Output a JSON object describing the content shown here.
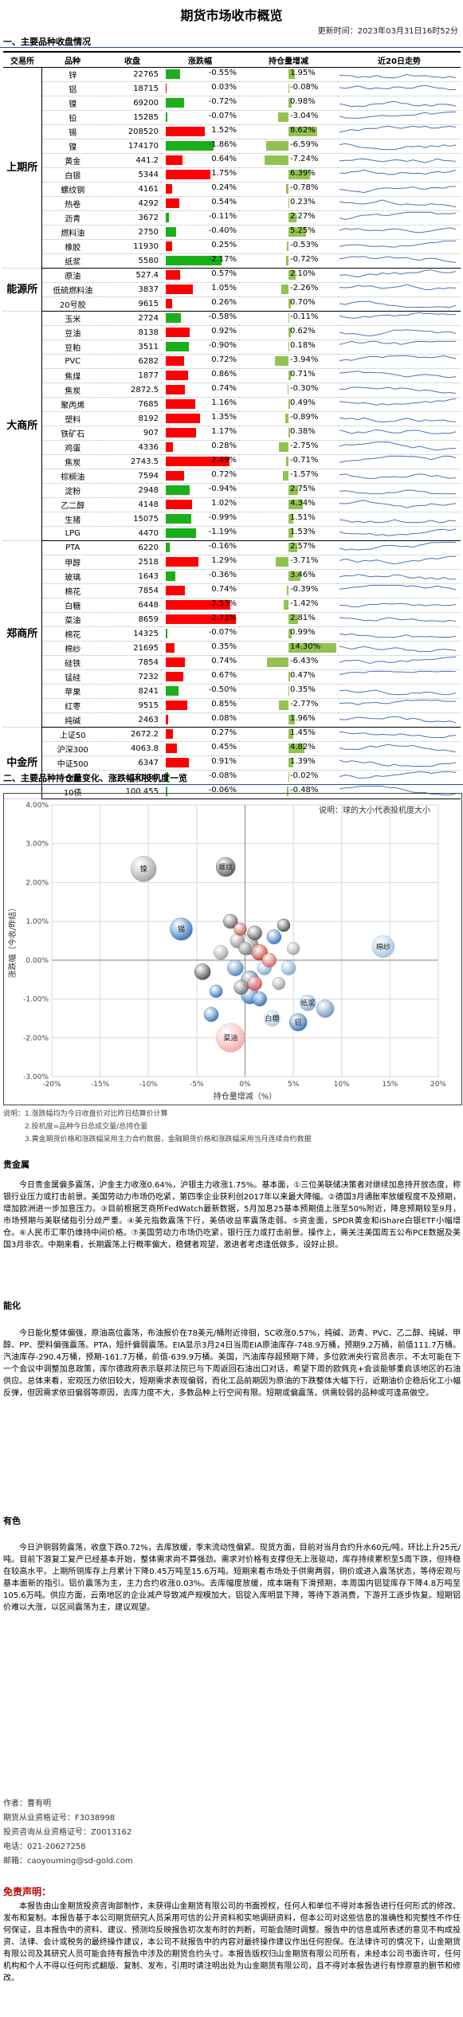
{
  "title": "期货市场收市概览",
  "updated": "更新时间：2023年03月31日16时52分",
  "section1": "一、主要品种收盘情况",
  "headers": [
    "交易所",
    "品种",
    "收盘",
    "涨跌幅",
    "持仓量增减",
    "近20日走势"
  ],
  "colors": {
    "up": "#ff0000",
    "down": "#19b019",
    "hold": "#92c350",
    "trend": "#4a73b5"
  },
  "groups": [
    {
      "exchange": "上期所",
      "rows": [
        {
          "name": "锌",
          "price": "22765",
          "chg": "-0.55%",
          "chgv": -0.55,
          "hold": "1.95%",
          "holdv": 1.95
        },
        {
          "name": "铝",
          "price": "18715",
          "chg": "0.03%",
          "chgv": 0.03,
          "hold": "-0.08%",
          "holdv": -0.08
        },
        {
          "name": "镍",
          "price": "69200",
          "chg": "-0.72%",
          "chgv": -0.72,
          "hold": "0.98%",
          "holdv": 0.98
        },
        {
          "name": "铅",
          "price": "15285",
          "chg": "-0.07%",
          "chgv": -0.07,
          "hold": "-3.04%",
          "holdv": -3.04
        },
        {
          "name": "锡",
          "price": "208520",
          "chg": "1.52%",
          "chgv": 1.52,
          "hold": "8.62%",
          "holdv": 8.62
        },
        {
          "name": "镍",
          "price": "174170",
          "chg": "-1.86%",
          "chgv": -1.86,
          "hold": "-6.59%",
          "holdv": -6.59
        },
        {
          "name": "黄金",
          "price": "441.2",
          "chg": "0.64%",
          "chgv": 0.64,
          "hold": "-7.24%",
          "holdv": -7.24
        },
        {
          "name": "白银",
          "price": "5344",
          "chg": "1.75%",
          "chgv": 1.75,
          "hold": "6.39%",
          "holdv": 6.39
        },
        {
          "name": "螺纹钢",
          "price": "4161",
          "chg": "0.24%",
          "chgv": 0.24,
          "hold": "-0.78%",
          "holdv": -0.78
        },
        {
          "name": "热卷",
          "price": "4292",
          "chg": "0.54%",
          "chgv": 0.54,
          "hold": "0.23%",
          "holdv": 0.23
        },
        {
          "name": "沥青",
          "price": "3672",
          "chg": "-0.11%",
          "chgv": -0.11,
          "hold": "2.27%",
          "holdv": 2.27
        },
        {
          "name": "燃料油",
          "price": "2750",
          "chg": "-0.40%",
          "chgv": -0.4,
          "hold": "5.25%",
          "holdv": 5.25
        },
        {
          "name": "橡胶",
          "price": "11930",
          "chg": "0.25%",
          "chgv": 0.25,
          "hold": "-0.53%",
          "holdv": -0.53
        },
        {
          "name": "纸浆",
          "price": "5580",
          "chg": "-2.17%",
          "chgv": -2.17,
          "hold": "-0.72%",
          "holdv": -0.72
        }
      ]
    },
    {
      "exchange": "能源所",
      "rows": [
        {
          "name": "原油",
          "price": "527.4",
          "chg": "0.57%",
          "chgv": 0.57,
          "hold": "2.10%",
          "holdv": 2.1
        },
        {
          "name": "低硫燃料油",
          "price": "3837",
          "chg": "1.05%",
          "chgv": 1.05,
          "hold": "-2.26%",
          "holdv": -2.26
        },
        {
          "name": "20号胶",
          "price": "9615",
          "chg": "0.26%",
          "chgv": 0.26,
          "hold": "0.70%",
          "holdv": 0.7
        }
      ]
    },
    {
      "exchange": "大商所",
      "rows": [
        {
          "name": "玉米",
          "price": "2724",
          "chg": "-0.58%",
          "chgv": -0.58,
          "hold": "-0.11%",
          "holdv": -0.11
        },
        {
          "name": "豆油",
          "price": "8138",
          "chg": "0.92%",
          "chgv": 0.92,
          "hold": "0.62%",
          "holdv": 0.62
        },
        {
          "name": "豆粕",
          "price": "3511",
          "chg": "-0.90%",
          "chgv": -0.9,
          "hold": "0.18%",
          "holdv": 0.18
        },
        {
          "name": "PVC",
          "price": "6282",
          "chg": "0.72%",
          "chgv": 0.72,
          "hold": "-3.94%",
          "holdv": -3.94
        },
        {
          "name": "焦煤",
          "price": "1877",
          "chg": "0.86%",
          "chgv": 0.86,
          "hold": "0.71%",
          "holdv": 0.71
        },
        {
          "name": "焦炭",
          "price": "2872.5",
          "chg": "0.74%",
          "chgv": 0.74,
          "hold": "-0.30%",
          "holdv": -0.3
        },
        {
          "name": "聚丙烯",
          "price": "7685",
          "chg": "1.16%",
          "chgv": 1.16,
          "hold": "0.49%",
          "holdv": 0.49
        },
        {
          "name": "塑料",
          "price": "8192",
          "chg": "1.35%",
          "chgv": 1.35,
          "hold": "-0.89%",
          "holdv": -0.89
        },
        {
          "name": "铁矿石",
          "price": "907",
          "chg": "1.17%",
          "chgv": 1.17,
          "hold": "0.38%",
          "holdv": 0.38
        },
        {
          "name": "鸡蛋",
          "price": "4336",
          "chg": "0.28%",
          "chgv": 0.28,
          "hold": "-2.75%",
          "holdv": -2.75
        },
        {
          "name": "焦炭",
          "price": "2743.5",
          "chg": "2.49%",
          "chgv": 2.49,
          "hold": "-0.71%",
          "holdv": -0.71
        },
        {
          "name": "棕榈油",
          "price": "7594",
          "chg": "0.72%",
          "chgv": 0.72,
          "hold": "-1.57%",
          "holdv": -1.57
        },
        {
          "name": "淀粉",
          "price": "2948",
          "chg": "-0.94%",
          "chgv": -0.94,
          "hold": "2.75%",
          "holdv": 2.75
        },
        {
          "name": "乙二醇",
          "price": "4148",
          "chg": "1.02%",
          "chgv": 1.02,
          "hold": "4.34%",
          "holdv": 4.34
        },
        {
          "name": "生猪",
          "price": "15075",
          "chg": "-0.99%",
          "chgv": -0.99,
          "hold": "1.51%",
          "holdv": 1.51
        },
        {
          "name": "LPG",
          "price": "4470",
          "chg": "-1.19%",
          "chgv": -1.19,
          "hold": "1.53%",
          "holdv": 1.53
        }
      ]
    },
    {
      "exchange": "郑商所",
      "rows": [
        {
          "name": "PTA",
          "price": "6220",
          "chg": "-0.16%",
          "chgv": -0.16,
          "hold": "2.57%",
          "holdv": 2.57
        },
        {
          "name": "甲醇",
          "price": "2518",
          "chg": "1.29%",
          "chgv": 1.29,
          "hold": "-3.71%",
          "holdv": -3.71
        },
        {
          "name": "玻璃",
          "price": "1643",
          "chg": "-0.36%",
          "chgv": -0.36,
          "hold": "3.46%",
          "holdv": 3.46
        },
        {
          "name": "棉花",
          "price": "7854",
          "chg": "0.74%",
          "chgv": 0.74,
          "hold": "-0.39%",
          "holdv": -0.39
        },
        {
          "name": "白糖",
          "price": "6448",
          "chg": "2.53%",
          "chgv": 2.53,
          "hold": "-1.42%",
          "holdv": -1.42
        },
        {
          "name": "菜油",
          "price": "8659",
          "chg": "2.73%",
          "chgv": 2.73,
          "hold": "2.81%",
          "holdv": 2.81
        },
        {
          "name": "棉花",
          "price": "14325",
          "chg": "-0.07%",
          "chgv": -0.07,
          "hold": "0.99%",
          "holdv": 0.99
        },
        {
          "name": "棉纱",
          "price": "21695",
          "chg": "0.35%",
          "chgv": 0.35,
          "hold": "14.30%",
          "holdv": 14.3
        },
        {
          "name": "硅铁",
          "price": "7854",
          "chg": "0.74%",
          "chgv": 0.74,
          "hold": "-6.43%",
          "holdv": -6.43
        },
        {
          "name": "锰硅",
          "price": "7232",
          "chg": "0.67%",
          "chgv": 0.67,
          "hold": "0.47%",
          "holdv": 0.47
        },
        {
          "name": "苹果",
          "price": "8241",
          "chg": "-0.50%",
          "chgv": -0.5,
          "hold": "0.35%",
          "holdv": 0.35
        },
        {
          "name": "红枣",
          "price": "9515",
          "chg": "0.85%",
          "chgv": 0.85,
          "hold": "-2.77%",
          "holdv": -2.77
        },
        {
          "name": "纯碱",
          "price": "2463",
          "chg": "0.08%",
          "chgv": 0.08,
          "hold": "1.96%",
          "holdv": 1.96
        }
      ]
    },
    {
      "exchange": "中金所",
      "rows": [
        {
          "name": "上证50",
          "price": "2672.2",
          "chg": "0.27%",
          "chgv": 0.27,
          "hold": "1.45%",
          "holdv": 1.45
        },
        {
          "name": "沪深300",
          "price": "4063.8",
          "chg": "0.45%",
          "chgv": 0.45,
          "hold": "4.82%",
          "holdv": 4.82
        },
        {
          "name": "中证500",
          "price": "6347",
          "chg": "0.91%",
          "chgv": 0.91,
          "hold": "1.39%",
          "holdv": 1.39
        },
        {
          "name": "5债",
          "price": "101.06",
          "chg": "-0.08%",
          "chgv": -0.08,
          "hold": "-0.02%",
          "holdv": -0.02
        },
        {
          "name": "10债",
          "price": "100.455",
          "chg": "-0.06%",
          "chgv": -0.06,
          "hold": "-0.48%",
          "holdv": -0.48
        }
      ]
    }
  ],
  "section2": "二、主要品种持仓量变化、涨跌幅和投机度一览",
  "chart_data": {
    "type": "scatter",
    "note": "说明：球的大小代表投机度大小",
    "xlabel": "持仓量增减（%）",
    "ylabel": "涨跌幅（今收/昨结）",
    "xlim": [
      -20,
      20
    ],
    "ylim": [
      -3,
      4
    ],
    "xticks": [
      "-20%",
      "-15%",
      "-10%",
      "-5%",
      "0%",
      "5%",
      "10%",
      "15%",
      "20%"
    ],
    "yticks": [
      "4.00%",
      "3.00%",
      "2.00%",
      "1.00%",
      "0.00%",
      "-1.00%",
      "-2.00%",
      "-3.00%"
    ],
    "points": [
      {
        "label": "镍",
        "x": -10.5,
        "y": 2.35,
        "r": 16,
        "color": "#9e9e9e"
      },
      {
        "label": "锡",
        "x": -6.6,
        "y": 0.8,
        "r": 14,
        "color": "#2e6fb7"
      },
      {
        "label": "螺纹",
        "x": -2.0,
        "y": 2.4,
        "r": 12,
        "color": "#555555"
      },
      {
        "label": "热卷",
        "x": 0.3,
        "y": 0.4,
        "r": 13,
        "color": "#7e7e7e"
      },
      {
        "label": "豆粕",
        "x": 0.5,
        "y": -0.9,
        "r": 11,
        "color": "#2e6fb7"
      },
      {
        "label": "菜油",
        "x": -1.5,
        "y": -2.0,
        "r": 18,
        "color": "#f4a7a7"
      },
      {
        "label": "白糖",
        "x": 2.8,
        "y": -1.5,
        "r": 10,
        "color": "#a8c8e8"
      },
      {
        "label": "铝",
        "x": 5.5,
        "y": -1.6,
        "r": 11,
        "color": "#2e6fb7"
      },
      {
        "label": "棉纱",
        "x": 14.3,
        "y": 0.35,
        "r": 14,
        "color": "#9fbfdf"
      },
      {
        "label": "纸浆",
        "x": 6.5,
        "y": -1.1,
        "r": 10,
        "color": "#7fa5cf"
      },
      {
        "label": "原油",
        "x": -4.4,
        "y": -0.3,
        "r": 10,
        "color": "#444444"
      },
      {
        "label": "黄金",
        "x": -3.5,
        "y": -1.4,
        "r": 9,
        "color": "#2e6fb7"
      },
      {
        "label": "白银",
        "x": 1.5,
        "y": 0.2,
        "r": 10,
        "color": "#c0392b"
      },
      {
        "label": "PVC",
        "x": -0.8,
        "y": 0.5,
        "r": 9,
        "color": "#888888"
      },
      {
        "label": "焦煤",
        "x": 0.5,
        "y": -0.5,
        "r": 11,
        "color": "#3f5f80"
      },
      {
        "label": "塑料",
        "x": -1.0,
        "y": -0.2,
        "r": 10,
        "color": "#4a7ebb"
      },
      {
        "label": "甲醇",
        "x": -0.4,
        "y": -0.7,
        "r": 9,
        "color": "#6a6a6a"
      },
      {
        "label": "乙二醇",
        "x": 1.0,
        "y": -0.6,
        "r": 9,
        "color": "#d64545"
      },
      {
        "label": "沥青",
        "x": 3.0,
        "y": 0.6,
        "r": 9,
        "color": "#2e6fb7"
      },
      {
        "label": "燃料油",
        "x": 5.0,
        "y": 0.3,
        "r": 8,
        "color": "#a0a0a0"
      },
      {
        "label": "玻璃",
        "x": 2.0,
        "y": -0.2,
        "r": 9,
        "color": "#7fa5cf"
      },
      {
        "label": "铁矿",
        "x": 1.0,
        "y": 0.7,
        "r": 9,
        "color": "#5a5a5a"
      },
      {
        "label": "棕榈",
        "x": -2.5,
        "y": 0.2,
        "r": 9,
        "color": "#9e9e9e"
      },
      {
        "label": "PTA",
        "x": 2.5,
        "y": 0.0,
        "r": 9,
        "color": "#d06060"
      },
      {
        "label": "生猪",
        "x": 1.5,
        "y": -1.0,
        "r": 9,
        "color": "#2e6fb7"
      },
      {
        "label": "鸡蛋",
        "x": -1.5,
        "y": 1.0,
        "r": 9,
        "color": "#5a5a5a"
      },
      {
        "label": "淀粉",
        "x": 3.5,
        "y": -0.6,
        "r": 8,
        "color": "#999999"
      },
      {
        "label": "LPG",
        "x": -0.5,
        "y": 0.8,
        "r": 8,
        "color": "#c0504d"
      },
      {
        "label": "锰硅",
        "x": 8.3,
        "y": -1.25,
        "r": 11,
        "color": "#6a8fbd"
      },
      {
        "label": "硅铁",
        "x": 4.0,
        "y": 0.9,
        "r": 8,
        "color": "#444444"
      },
      {
        "label": "苹果",
        "x": -3.0,
        "y": -0.8,
        "r": 8,
        "color": "#2e6fb7"
      },
      {
        "label": "红枣",
        "x": 0.0,
        "y": 0.3,
        "r": 8,
        "color": "#888888"
      },
      {
        "label": "纯碱",
        "x": 4.5,
        "y": -0.2,
        "r": 9,
        "color": "#7fa5cf"
      }
    ],
    "visible_labels": [
      "镍",
      "锡",
      "螺纹",
      "菜油",
      "铝",
      "棉纱",
      "白糖",
      "纸浆"
    ]
  },
  "notes": [
    "说明：1.涨跌幅均为今日收盘价对比昨日结算价计算",
    "　　　2.投机度=品种今日总成交量/总持仓量",
    "　　　3.黄金期货价格和涨跌幅采用主力合约数据，金融期货价格和涨跌幅采用当月连续合约数据"
  ],
  "text": {
    "h_metal": "贵金属",
    "metal": "今日贵金属偏多震荡，沪金主力收涨0.64%，沪银主力收涨1.75%。基本面，①三位美联储决策者对继续加息持开放态度，称银行业压力或打击前景。美国劳动力市场仍吃紧，第四季企业获利创2017年以来最大降幅。②德国3月通胀率放缓程度不及预期，增加欧洲进一步加息压力。③目前根据芝商所FedWatch最新数据，5月加息25基本预期值上涨至50%附近，降息预期较至9月，市场预期与美联储指引分歧严重。④美元指数震荡下行，美债收益率震荡走弱。⑤资金面，SPDR黄金和iShare白银ETF小幅增仓。⑥人民币汇率仍维持中间价格。⑦美国劳动力市场仍吃紧，银行压力或打击前景。操作上，需关注美国周五公布PCE数据及美国3月非农。中期来看，长期震荡上行概率偏大，稳健者观望，激进者考虑逢低做多，设好止损。",
    "h_chem": "能化",
    "chem": "今日能化整体偏强，原油高位震荡，布油报价在78美元/桶附近徘徊，SC收涨0.57%，纯碱、沥青、PVC、乙二醇、纯碱、甲醇、PP、塑料偏强震荡。PTA，短纤偏弱震荡。EIA显示3月24日当周EIA原油库存-748.9万桶，预期9.2万桶，前值111.7万桶。汽油库存-290.4万桶，预期-161.7万桶，前值-639.9万桶。美国，汽油库存超预期下降，多位欧洲央行官员表示，不太可能在下一个会议中调整加息政策，库尔德政府表示联邦法院已与下周返回石油出口对话，希望下周的欧佩克+会谈能够重启该地区的石油供应。总体来看，宏观压力依旧较大，短期需求表现偏弱，而化工品前期因为原油的下跌整体大幅下行，近期油价企稳后化工小幅反弹，但因需求依旧偏弱等原因，去库力度不大，多数品种上行空间有限。短期或偏震荡，供需较弱的品种或可逢高做空。",
    "h_nonfer": "有色",
    "nonfer": "今日沪铜弱势震荡，收盘下跌0.72%，去库放缓，季末流动性偏紧。现货方面，目前对当月合约升水60元/吨，环比上升25元/吨。目前下游复工复产已经基本开始，整体需求尚不算强劲。需求对价格有支撑但无上涨驱动，库存持续累积至5周下跌，但持稳在较高水平。上期所铜库存上月累计下降0.45万吨至15.6万吨。短期来看市场处于供需两弱，铜价或进入震荡状态，等待宏观与基本面新的指引。铝价震荡为主，主力合约收涨0.03%。去库幅度放缓，成本端有下滑预期，本周国内铝锭库存下降4.8万吨至105.6万吨。供应方面，云南地区的企业减产导致减产规模加大，铝锭入库明显下降，等待下游消费，下游开工逐步恢复。短期铝价难以大涨，以区间震荡为主，建议观望。",
    "author_label": "作者：曹有明",
    "cert1": "期货从业资格证号：F3038998",
    "cert2": "投资咨询从业资格证号：Z0013162",
    "phone": "电话：021-20627258",
    "email": "邮箱：caoyouming@sd-gold.com",
    "disc_title": "免责声明：",
    "disc": "本报告由山金期货投资咨询部制作，未获得山金期货有限公司的书面授权，任何人和单位不得对本报告进行任何形式的修改、发布和复制。本报告基于本公司期货研究人员采用可信的公开资料和实地调研资料，但本公司对这些信息的准确性和完整性不作任何保证，且本报告中的资料、建议、预测均反映报告初次发布时的判断，可能会随时调整。报告中的信息或所表述的意见不构成投资、法律、会计或税务的最终操作建议，本公司不就报告中的内容对最终操作建议作出任何担保。在法律许可的情况下，山金期货有限公司及其研究人员可能会持有报告中涉及的期货合约头寸。本报告版权归山金期货有限公司所有，未经本公司书面许可，任何机构和个人不得以任何形式翻版、复制、发布，引用时请注明出处为山金期货有限公司，且不得对本报告进行有悖原意的删节和修改。"
  }
}
